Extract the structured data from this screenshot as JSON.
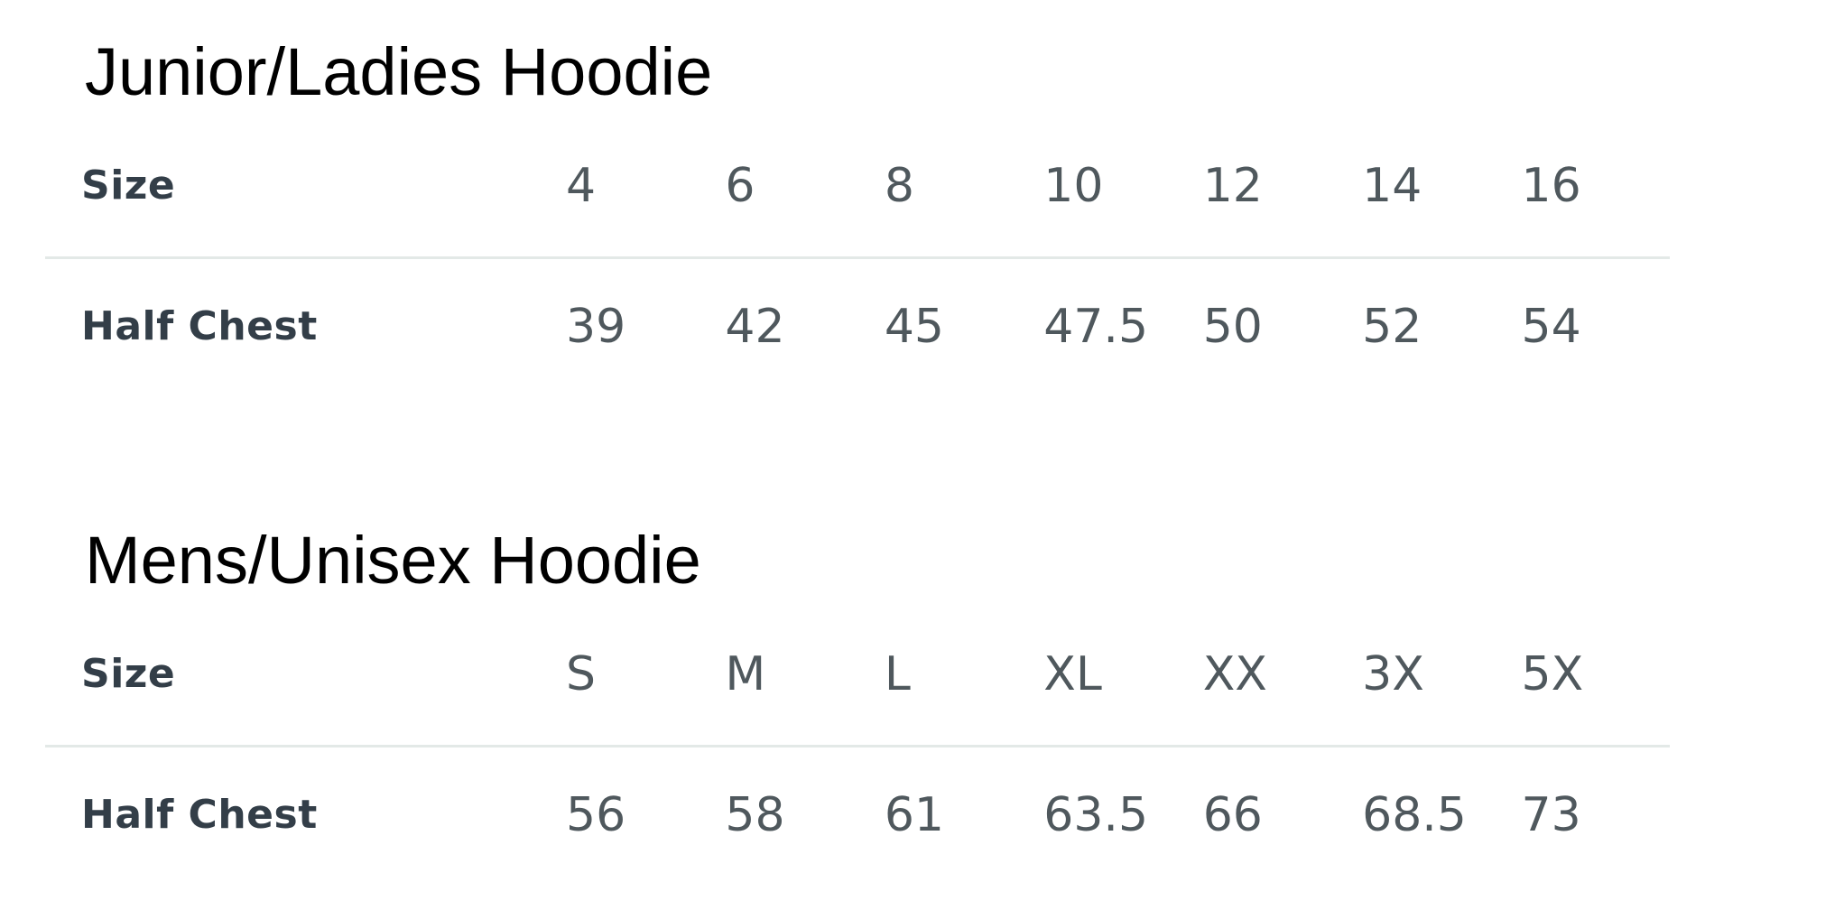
{
  "page": {
    "background": "#ffffff",
    "colors": {
      "title": "#000000",
      "row_label": "#333e48",
      "value": "#4f585d",
      "divider": "#e3e9e7"
    }
  },
  "chart_data": [
    {
      "type": "table",
      "title": "Junior/Ladies Hoodie",
      "rows": [
        {
          "label": "Size",
          "values": [
            "4",
            "6",
            "8",
            "10",
            "12",
            "14",
            "16"
          ]
        },
        {
          "label": "Half Chest",
          "values": [
            "39",
            "42",
            "45",
            "47.5",
            "50",
            "52",
            "54"
          ]
        }
      ]
    },
    {
      "type": "table",
      "title": "Mens/Unisex Hoodie",
      "rows": [
        {
          "label": "Size",
          "values": [
            "S",
            "M",
            "L",
            "XL",
            "XX",
            "3X",
            "5X"
          ]
        },
        {
          "label": "Half Chest",
          "values": [
            "56",
            "58",
            "61",
            "63.5",
            "66",
            "68.5",
            "73"
          ]
        }
      ]
    }
  ]
}
